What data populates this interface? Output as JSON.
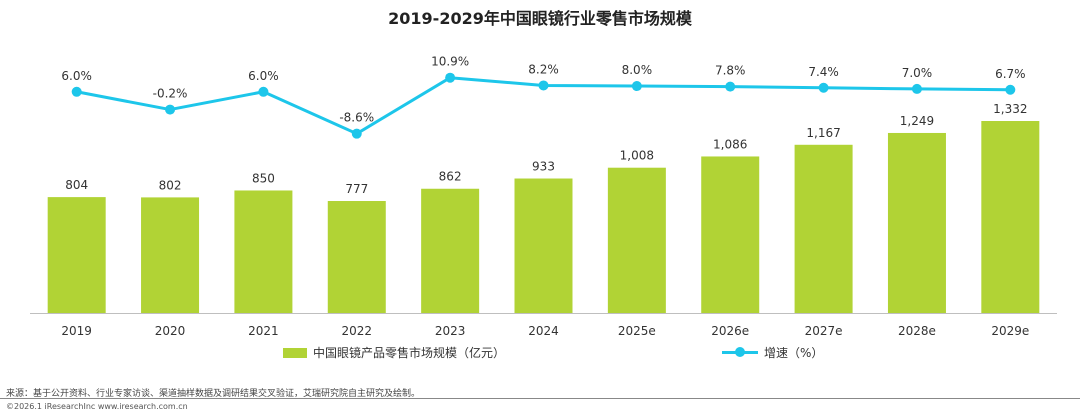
{
  "chart_data": {
    "title": "2019-2029年中国眼镜行业零售市场规模",
    "categories": [
      "2019",
      "2020",
      "2021",
      "2022",
      "2023",
      "2024",
      "2025e",
      "2026e",
      "2027e",
      "2028e",
      "2029e"
    ],
    "series": [
      {
        "name": "中国眼镜产品零售市场规模（亿元）",
        "type": "bar",
        "values": [
          804,
          802,
          850,
          777,
          862,
          933,
          1008,
          1086,
          1167,
          1249,
          1332
        ],
        "value_labels": [
          "804",
          "802",
          "850",
          "777",
          "862",
          "933",
          "1,008",
          "1,086",
          "1,167",
          "1,249",
          "1,332"
        ],
        "color": "#b1d335"
      },
      {
        "name": "增速（%）",
        "type": "line",
        "values": [
          6.0,
          -0.2,
          6.0,
          -8.6,
          10.9,
          8.2,
          8.0,
          7.8,
          7.4,
          7.0,
          6.7
        ],
        "value_labels": [
          "6.0%",
          "-0.2%",
          "6.0%",
          "-8.6%",
          "10.9%",
          "8.2%",
          "8.0%",
          "7.8%",
          "7.4%",
          "7.0%",
          "6.7%"
        ],
        "color": "#1dc6ea"
      }
    ],
    "legend_position": "bottom",
    "grid": false
  },
  "footer": {
    "source": "来源：基于公开资料、行业专家访谈、渠道抽样数据及调研结果交叉验证，艾瑞研究院自主研究及绘制。",
    "copyright": "©2026.1 iResearchInc www.iresearch.com.cn"
  }
}
